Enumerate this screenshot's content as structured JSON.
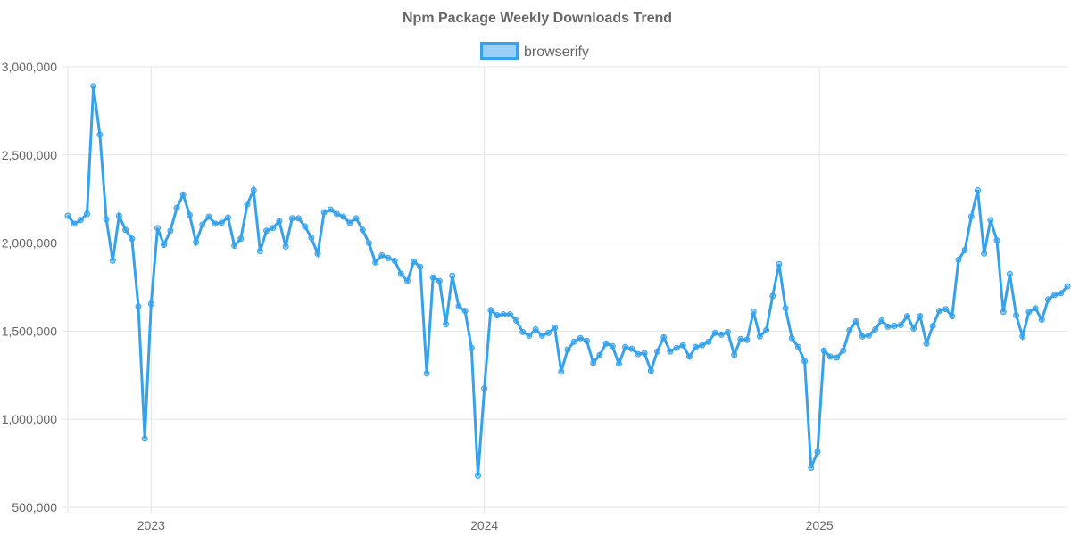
{
  "chart_data": {
    "type": "line",
    "title": "Npm Package Weekly Downloads Trend",
    "xlabel": "",
    "ylabel": "",
    "ylim": [
      500000,
      3000000
    ],
    "y_ticks": [
      {
        "value": 500000,
        "label": "500,000"
      },
      {
        "value": 1000000,
        "label": "1,000,000"
      },
      {
        "value": 1500000,
        "label": "1,500,000"
      },
      {
        "value": 2000000,
        "label": "2,000,000"
      },
      {
        "value": 2500000,
        "label": "2,500,000"
      },
      {
        "value": 3000000,
        "label": "3,000,000"
      }
    ],
    "x_ticks": [
      {
        "week_index": 13,
        "label": "2023"
      },
      {
        "week_index": 65,
        "label": "2024"
      },
      {
        "week_index": 117.3,
        "label": "2025"
      }
    ],
    "grid": true,
    "legend_position": "top-center",
    "colors": {
      "line": "#36a2eb",
      "fill": "#9ad0f5",
      "grid": "#e5e5e5",
      "text": "#666666"
    },
    "series": [
      {
        "name": "browserify",
        "values": [
          2155000,
          2110000,
          2130000,
          2165000,
          2890000,
          2615000,
          2135000,
          1900000,
          2155000,
          2075000,
          2025000,
          1640000,
          890000,
          1655000,
          2085000,
          1990000,
          2070000,
          2200000,
          2275000,
          2160000,
          2005000,
          2105000,
          2150000,
          2110000,
          2115000,
          2145000,
          1985000,
          2025000,
          2220000,
          2300000,
          1955000,
          2070000,
          2085000,
          2125000,
          1980000,
          2140000,
          2140000,
          2095000,
          2030000,
          1940000,
          2175000,
          2190000,
          2165000,
          2150000,
          2115000,
          2140000,
          2075000,
          2000000,
          1890000,
          1930000,
          1915000,
          1900000,
          1825000,
          1785000,
          1895000,
          1865000,
          1260000,
          1805000,
          1785000,
          1540000,
          1815000,
          1640000,
          1615000,
          1405000,
          680000,
          1175000,
          1620000,
          1590000,
          1595000,
          1595000,
          1560000,
          1495000,
          1475000,
          1510000,
          1475000,
          1490000,
          1520000,
          1270000,
          1395000,
          1440000,
          1460000,
          1445000,
          1320000,
          1365000,
          1430000,
          1415000,
          1315000,
          1410000,
          1400000,
          1370000,
          1375000,
          1275000,
          1385000,
          1465000,
          1385000,
          1405000,
          1420000,
          1355000,
          1410000,
          1420000,
          1440000,
          1490000,
          1480000,
          1495000,
          1365000,
          1455000,
          1450000,
          1610000,
          1470000,
          1505000,
          1700000,
          1880000,
          1630000,
          1460000,
          1410000,
          1330000,
          725000,
          815000,
          1390000,
          1355000,
          1350000,
          1390000,
          1505000,
          1555000,
          1470000,
          1475000,
          1510000,
          1560000,
          1525000,
          1530000,
          1535000,
          1585000,
          1515000,
          1585000,
          1430000,
          1530000,
          1615000,
          1625000,
          1585000,
          1905000,
          1960000,
          2150000,
          2300000,
          1940000,
          2130000,
          2015000,
          1610000,
          1825000,
          1590000,
          1470000,
          1610000,
          1630000,
          1565000,
          1680000,
          1705000,
          1715000,
          1755000
        ]
      }
    ]
  }
}
